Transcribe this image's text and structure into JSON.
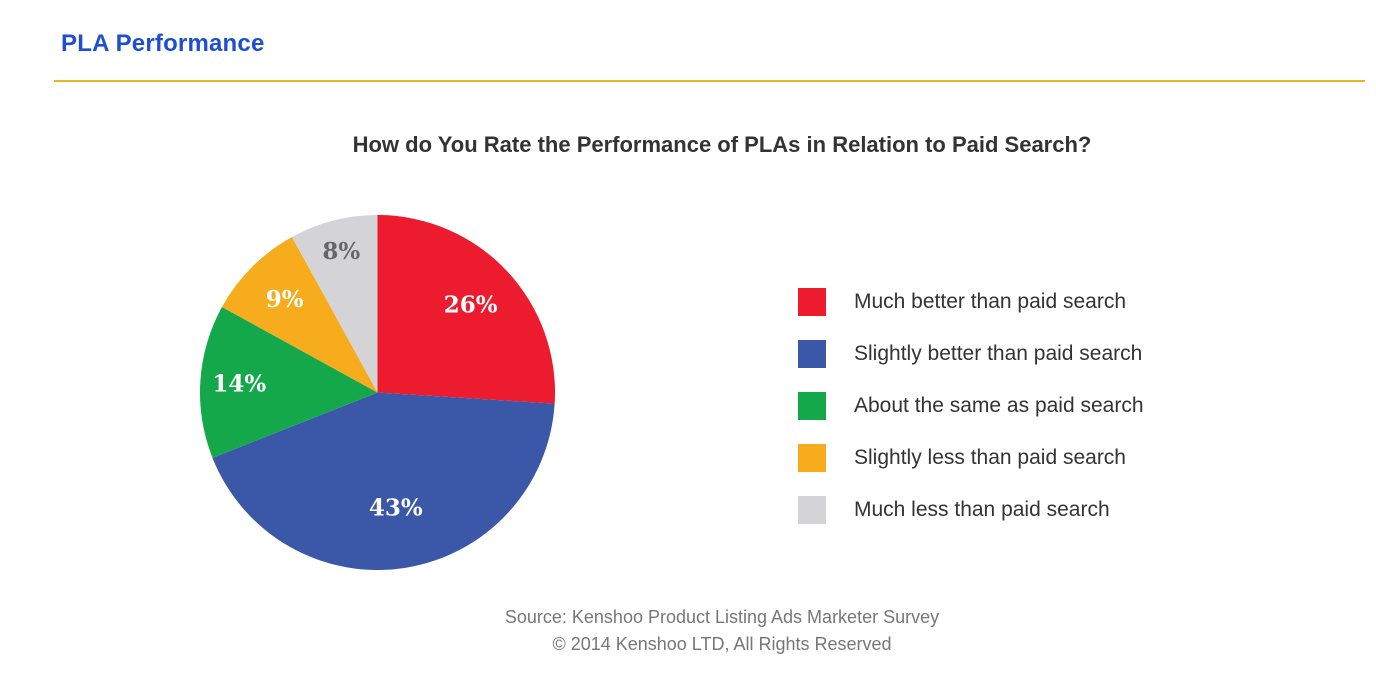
{
  "header": {
    "title": "PLA Performance"
  },
  "chart_data": {
    "type": "pie",
    "title": "How do You Rate the Performance of PLAs in Relation to Paid Search?",
    "slices": [
      {
        "label": "Much better than paid search",
        "value": 26,
        "display": "26%",
        "color": "#ec1c2e",
        "label_color": "#ffffff"
      },
      {
        "label": "Slightly better than paid search",
        "value": 43,
        "display": "43%",
        "color": "#3b57a8",
        "label_color": "#ffffff"
      },
      {
        "label": "About the same as paid search",
        "value": 14,
        "display": "14%",
        "color": "#15a84a",
        "label_color": "#ffffff"
      },
      {
        "label": "Slightly less than paid search",
        "value": 9,
        "display": "9%",
        "color": "#f6ac1d",
        "label_color": "#ffffff"
      },
      {
        "label": "Much less than paid search",
        "value": 8,
        "display": "8%",
        "color": "#d4d4d6",
        "label_color": "#666666"
      }
    ],
    "legend_position": "right"
  },
  "footer": {
    "source": "Source: Kenshoo Product Listing Ads Marketer Survey",
    "copyright": "© 2014 Kenshoo LTD, All Rights Reserved"
  }
}
